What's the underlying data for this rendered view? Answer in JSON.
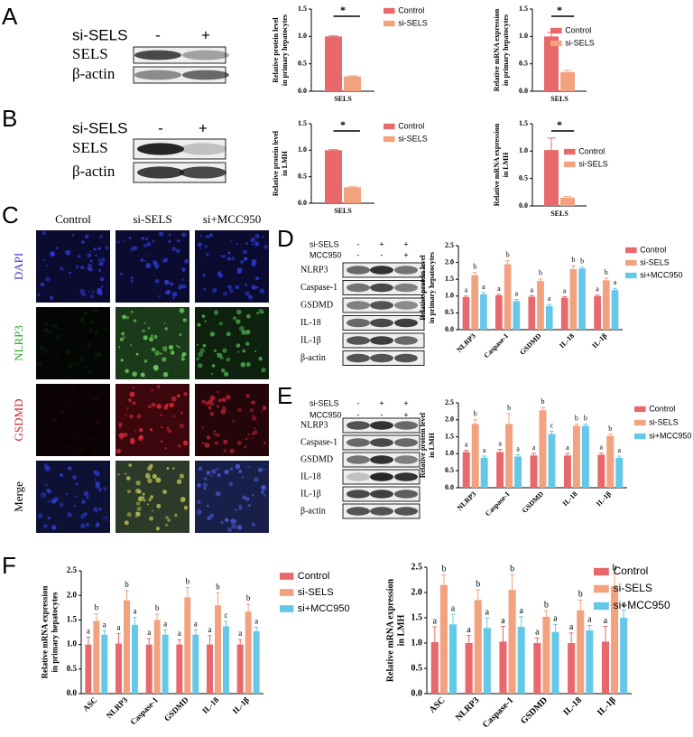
{
  "figure": {
    "panel_labels": [
      "A",
      "B",
      "C",
      "D",
      "E",
      "F"
    ],
    "blot_a": {
      "treatments": [
        {
          "name": "si-SELS",
          "lanes": [
            "-",
            "+"
          ]
        }
      ],
      "proteins": [
        "SELS",
        "β-actin"
      ]
    },
    "blot_b": {
      "treatments": [
        {
          "name": "si-SELS",
          "lanes": [
            "-",
            "+"
          ]
        }
      ],
      "proteins": [
        "SELS",
        "β-actin"
      ]
    },
    "images_c": {
      "columns": [
        "Control",
        "si-SELS",
        "si+MCC950"
      ],
      "rows": [
        "DAPI",
        "NLRP3",
        "GSDMD",
        "Merge"
      ]
    },
    "blot_d": {
      "treatments": [
        {
          "name": "si-SELS",
          "lanes": [
            "-",
            "+",
            "+"
          ]
        },
        {
          "name": "MCC950",
          "lanes": [
            "-",
            "-",
            "+"
          ]
        }
      ],
      "proteins": [
        "NLRP3",
        "Caspase-1",
        "GSDMD",
        "IL-18",
        "IL-1β",
        "β-actin"
      ]
    },
    "blot_e": {
      "treatments": [
        {
          "name": "si-SELS",
          "lanes": [
            "-",
            "+",
            "+"
          ]
        },
        {
          "name": "MCC950",
          "lanes": [
            "-",
            "-",
            "+"
          ]
        }
      ],
      "proteins": [
        "NLRP3",
        "Caspase-1",
        "GSDMD",
        "IL-18",
        "IL-1β",
        "β-actin"
      ]
    }
  },
  "chart_data": [
    {
      "type": "bar",
      "ylabel": [
        "Relative protein level",
        "in primary hepatocytes"
      ],
      "categories": [
        "SELS"
      ],
      "series": [
        {
          "name": "Control",
          "color": "#e8696b",
          "values": [
            1.0
          ],
          "errors": [
            0.01
          ]
        },
        {
          "name": "si-SELS",
          "color": "#f2a27e",
          "values": [
            0.27
          ],
          "errors": [
            0.01
          ]
        }
      ],
      "ylim": [
        0,
        1.5
      ],
      "yticks": [
        {
          "value": 0,
          "label": "0.0"
        },
        {
          "value": 0.5,
          "label": "0.5"
        },
        {
          "value": 1,
          "label": "1.0"
        },
        {
          "value": 1.5,
          "label": "1.5"
        }
      ],
      "annotation": "*"
    },
    {
      "type": "bar",
      "ylabel": [
        "Relative mRNA expression",
        "in primary hepatocytes"
      ],
      "categories": [
        "SELS"
      ],
      "series": [
        {
          "name": "Control",
          "color": "#e8696b",
          "values": [
            1.0
          ],
          "errors": [
            0.07
          ]
        },
        {
          "name": "si-SELS",
          "color": "#f2a27e",
          "values": [
            0.35
          ],
          "errors": [
            0.03
          ]
        }
      ],
      "ylim": [
        0,
        1.5
      ],
      "yticks": [
        {
          "value": 0,
          "label": "0.0"
        },
        {
          "value": 0.5,
          "label": "0.5"
        },
        {
          "value": 1,
          "label": "1.0"
        },
        {
          "value": 1.5,
          "label": "1.5"
        }
      ],
      "annotation": "*"
    },
    {
      "type": "bar",
      "ylabel": [
        "Relative protein level",
        "in LMH"
      ],
      "categories": [
        "SELS"
      ],
      "series": [
        {
          "name": "Control",
          "color": "#e8696b",
          "values": [
            1.0
          ],
          "errors": [
            0.01
          ]
        },
        {
          "name": "si-SELS",
          "color": "#f2a27e",
          "values": [
            0.3
          ],
          "errors": [
            0.01
          ]
        }
      ],
      "ylim": [
        0,
        1.5
      ],
      "yticks": [
        {
          "value": 0,
          "label": "0.0"
        },
        {
          "value": 0.5,
          "label": "0.5"
        },
        {
          "value": 1,
          "label": "1.0"
        },
        {
          "value": 1.5,
          "label": "1.5"
        }
      ],
      "annotation": "*"
    },
    {
      "type": "bar",
      "ylabel": [
        "Relative mRNA expression",
        "in LMH"
      ],
      "categories": [
        "SELS"
      ],
      "series": [
        {
          "name": "Control",
          "color": "#e8696b",
          "values": [
            1.02
          ],
          "errors": [
            0.22
          ]
        },
        {
          "name": "si-SELS",
          "color": "#f2a27e",
          "values": [
            0.15
          ],
          "errors": [
            0.02
          ]
        }
      ],
      "ylim": [
        0,
        1.5
      ],
      "yticks": [
        {
          "value": 0,
          "label": "0.0"
        },
        {
          "value": 0.5,
          "label": "0.5"
        },
        {
          "value": 1,
          "label": "1.0"
        },
        {
          "value": 1.5,
          "label": "1.5"
        }
      ],
      "annotation": "*"
    },
    {
      "type": "bar",
      "ylabel": [
        "Relative protein level",
        "in primary hepatocytes"
      ],
      "categories": [
        "NLRP3",
        "Caspase-1",
        "GSDMD",
        "IL-18",
        "IL-1β"
      ],
      "series": [
        {
          "name": "Control",
          "color": "#e8696b",
          "values": [
            0.97,
            1.02,
            0.98,
            0.95,
            1.0
          ],
          "errors": [
            0.03,
            0.03,
            0.03,
            0.03,
            0.03
          ],
          "letters": [
            "a",
            "a",
            "a",
            "a",
            "a"
          ]
        },
        {
          "name": "si-SELS",
          "color": "#f2a27e",
          "values": [
            1.62,
            1.95,
            1.45,
            1.8,
            1.47
          ],
          "errors": [
            0.08,
            0.1,
            0.06,
            0.1,
            0.06
          ],
          "letters": [
            "b",
            "b",
            "b",
            "b",
            "b"
          ]
        },
        {
          "name": "si+MCC950",
          "color": "#66c8e8",
          "values": [
            1.05,
            0.85,
            0.7,
            1.82,
            1.18
          ],
          "errors": [
            0.05,
            0.05,
            0.05,
            0.04,
            0.05
          ],
          "letters": [
            "a",
            "a",
            "a",
            "b",
            "a"
          ]
        }
      ],
      "ylim": [
        0,
        2.5
      ],
      "yticks": [
        {
          "value": 0,
          "label": "0.0"
        },
        {
          "value": 0.5,
          "label": "0.5"
        },
        {
          "value": 1,
          "label": "1.0"
        },
        {
          "value": 1.5,
          "label": "1.5"
        },
        {
          "value": 2,
          "label": "2.0"
        },
        {
          "value": 2.5,
          "label": "2.5"
        }
      ]
    },
    {
      "type": "bar",
      "ylabel": [
        "Relative protein level",
        "in LMH"
      ],
      "categories": [
        "NLRP3",
        "Caspase-1",
        "GSDMD",
        "IL-18",
        "IL-1β"
      ],
      "series": [
        {
          "name": "Control",
          "color": "#e8696b",
          "values": [
            1.05,
            1.05,
            0.95,
            0.95,
            0.97
          ],
          "errors": [
            0.05,
            0.08,
            0.06,
            0.06,
            0.05
          ],
          "letters": [
            "a",
            "a",
            "a",
            "a",
            "a"
          ]
        },
        {
          "name": "si-SELS",
          "color": "#f2a27e",
          "values": [
            1.88,
            1.88,
            2.28,
            1.82,
            1.52
          ],
          "errors": [
            0.12,
            0.3,
            0.08,
            0.05,
            0.05
          ],
          "letters": [
            "b",
            "b",
            "b",
            "b",
            "b"
          ]
        },
        {
          "name": "si+MCC950",
          "color": "#66c8e8",
          "values": [
            0.88,
            0.92,
            1.58,
            1.82,
            0.88
          ],
          "errors": [
            0.05,
            0.05,
            0.08,
            0.05,
            0.05
          ],
          "letters": [
            "a",
            "a",
            "c",
            "b",
            "a"
          ]
        }
      ],
      "ylim": [
        0,
        2.5
      ],
      "yticks": [
        {
          "value": 0,
          "label": "0.0"
        },
        {
          "value": 0.5,
          "label": "0.5"
        },
        {
          "value": 1,
          "label": "1.0"
        },
        {
          "value": 1.5,
          "label": "1.5"
        },
        {
          "value": 2,
          "label": "2.0"
        },
        {
          "value": 2.5,
          "label": "2.5"
        }
      ]
    },
    {
      "type": "bar",
      "ylabel": [
        "Relative mRNA expression",
        "in primary hepatocytes"
      ],
      "categories": [
        "ASC",
        "NLRP3",
        "Caspase-1",
        "GSDMD",
        "IL-18",
        "IL-1β"
      ],
      "series": [
        {
          "name": "Control",
          "color": "#e8696b",
          "values": [
            1.0,
            1.02,
            1.0,
            1.0,
            1.0,
            1.0
          ],
          "errors": [
            0.15,
            0.2,
            0.12,
            0.1,
            0.18,
            0.1
          ],
          "letters": [
            "a",
            "a",
            "a",
            "a",
            "a",
            "a"
          ]
        },
        {
          "name": "si-SELS",
          "color": "#f2a27e",
          "values": [
            1.48,
            1.9,
            1.5,
            1.96,
            1.8,
            1.67
          ],
          "errors": [
            0.15,
            0.2,
            0.12,
            0.2,
            0.25,
            0.15
          ],
          "letters": [
            "b",
            "b",
            "b",
            "b",
            "b",
            "b"
          ]
        },
        {
          "name": "si+MCC950",
          "color": "#66c8e8",
          "values": [
            1.2,
            1.4,
            1.2,
            1.2,
            1.37,
            1.27
          ],
          "errors": [
            0.08,
            0.15,
            0.1,
            0.1,
            0.1,
            0.08
          ],
          "letters": [
            "a",
            "a",
            "a",
            "a",
            "c",
            "a"
          ]
        }
      ],
      "ylim": [
        0,
        2.5
      ],
      "yticks": [
        {
          "value": 0,
          "label": "0.0"
        },
        {
          "value": 0.5,
          "label": "0.5"
        },
        {
          "value": 1,
          "label": "1.0"
        },
        {
          "value": 1.5,
          "label": "1.5"
        },
        {
          "value": 2,
          "label": "2.0"
        },
        {
          "value": 2.5,
          "label": "2.5"
        }
      ]
    },
    {
      "type": "bar",
      "ylabel": [
        "Relative mRNA expression",
        "in LMH"
      ],
      "categories": [
        "ASC",
        "NLRP3",
        "Caspase-1",
        "GSDMD",
        "IL-18",
        "IL-1β"
      ],
      "series": [
        {
          "name": "Control",
          "color": "#e8696b",
          "values": [
            1.02,
            1.0,
            1.03,
            1.0,
            1.0,
            1.03
          ],
          "errors": [
            0.3,
            0.15,
            0.3,
            0.1,
            0.2,
            0.3
          ],
          "letters": [
            "a",
            "a",
            "a",
            "a",
            "a",
            "a"
          ]
        },
        {
          "name": "si-SELS",
          "color": "#f2a27e",
          "values": [
            2.15,
            1.85,
            2.05,
            1.52,
            1.65,
            2.12
          ],
          "errors": [
            0.2,
            0.2,
            0.3,
            0.12,
            0.2,
            0.25
          ],
          "letters": [
            "b",
            "b",
            "b",
            "b",
            "b",
            "b"
          ]
        },
        {
          "name": "si+MCC950",
          "color": "#66c8e8",
          "values": [
            1.37,
            1.3,
            1.32,
            1.22,
            1.25,
            1.5
          ],
          "errors": [
            0.2,
            0.2,
            0.2,
            0.15,
            0.1,
            0.15
          ],
          "letters": [
            "a",
            "a",
            "a",
            "a",
            "a",
            "c"
          ]
        }
      ],
      "ylim": [
        0,
        2.5
      ],
      "yticks": [
        {
          "value": 0,
          "label": "0.0"
        },
        {
          "value": 0.5,
          "label": "0.5"
        },
        {
          "value": 1,
          "label": "1.0"
        },
        {
          "value": 1.5,
          "label": "1.5"
        },
        {
          "value": 2,
          "label": "2.0"
        },
        {
          "value": 2.5,
          "label": "2.5"
        }
      ]
    }
  ]
}
